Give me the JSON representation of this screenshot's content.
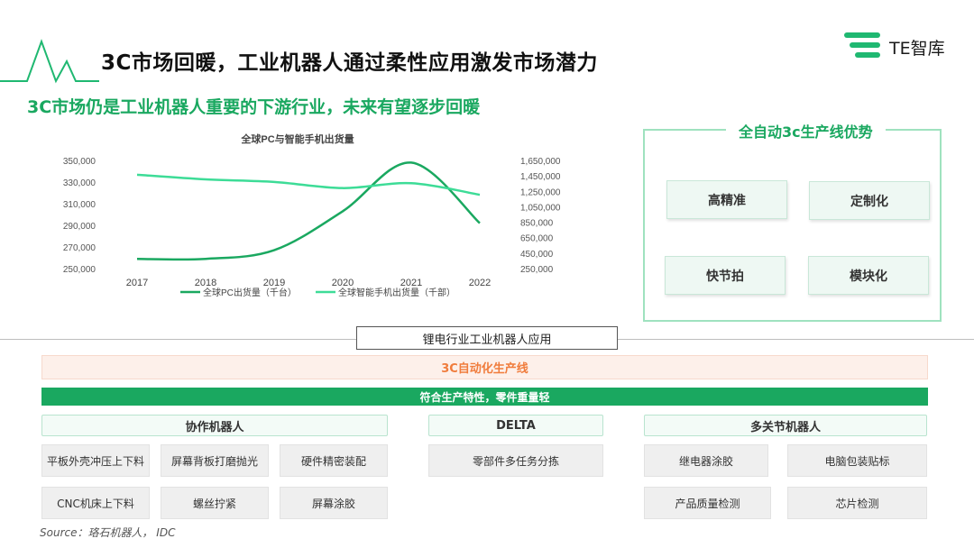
{
  "header": {
    "title": "3C市场回暖，工业机器人通过柔性应用激发市场潜力",
    "logo_text": "TE智库"
  },
  "subtitle": "3C市场仍是工业机器人重要的下游行业，未来有望逐步回暖",
  "chart_data": {
    "type": "line",
    "title": "全球PC与智能手机出货量",
    "categories": [
      "2017",
      "2018",
      "2019",
      "2020",
      "2021",
      "2022"
    ],
    "left_axis_ticks": [
      "350,000",
      "330,000",
      "310,000",
      "290,000",
      "270,000",
      "250,000"
    ],
    "right_axis_ticks": [
      "1,650,000",
      "1,450,000",
      "1,250,000",
      "1,050,000",
      "850,000",
      "650,000",
      "450,000",
      "250,000"
    ],
    "ylim_left": [
      250000,
      350000
    ],
    "ylim_right": [
      250000,
      1650000
    ],
    "series": [
      {
        "name": "全球PC出货量（千台）",
        "axis": "left",
        "color": "#1aa860",
        "values": [
          259000,
          259000,
          267000,
          303000,
          348000,
          292000
        ]
      },
      {
        "name": "全球智能手机出货量（千部）",
        "axis": "right",
        "color": "#3ddc97",
        "values": [
          1465000,
          1405000,
          1372000,
          1292000,
          1355000,
          1205000
        ]
      }
    ],
    "legend_position": "bottom",
    "grid": false
  },
  "advantages": {
    "title": "全自动3c生产线优势",
    "items": [
      "高精准",
      "定制化",
      "快节拍",
      "模块化"
    ]
  },
  "section": {
    "label": "锂电行业工业机器人应用",
    "bar_3c": "3C自动化生产线",
    "bar_green": "符合生产特性，零件重量轻"
  },
  "categories": {
    "cobot": {
      "title": "协作机器人",
      "items": [
        "平板外壳冲压上下料",
        "屏幕背板打磨抛光",
        "硬件精密装配",
        "CNC机床上下料",
        "螺丝拧紧",
        "屏幕涂胶"
      ]
    },
    "delta": {
      "title": "DELTA",
      "items": [
        "零部件多任务分拣"
      ]
    },
    "multi": {
      "title": "多关节机器人",
      "items": [
        "继电器涂胶",
        "电脑包装贴标",
        "产品质量检测",
        "芯片检测"
      ]
    }
  },
  "source": "Source：珞石机器人， IDC"
}
